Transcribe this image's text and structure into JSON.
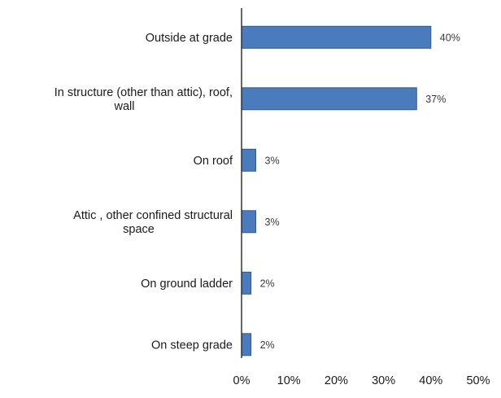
{
  "chart_data": {
    "type": "bar",
    "orientation": "horizontal",
    "categories": [
      [
        "Outside at grade"
      ],
      [
        "In structure (other than attic), roof,",
        "wall"
      ],
      [
        "On roof"
      ],
      [
        "Attic , other confined structural",
        "space"
      ],
      [
        "On ground ladder"
      ],
      [
        "On steep grade"
      ]
    ],
    "values": [
      40,
      37,
      3,
      3,
      2,
      2
    ],
    "value_labels": [
      "40%",
      "37%",
      "3%",
      "3%",
      "2%",
      "2%"
    ],
    "xlim": [
      0,
      50
    ],
    "xticks": [
      0,
      10,
      20,
      30,
      40,
      50
    ],
    "xtick_labels": [
      "0%",
      "10%",
      "20%",
      "30%",
      "40%",
      "50%"
    ],
    "grid": false,
    "legend": "none",
    "bar_color": "#4a7bbd",
    "bar_edge_color": "#2e5a94",
    "axis_color": "#333333"
  }
}
